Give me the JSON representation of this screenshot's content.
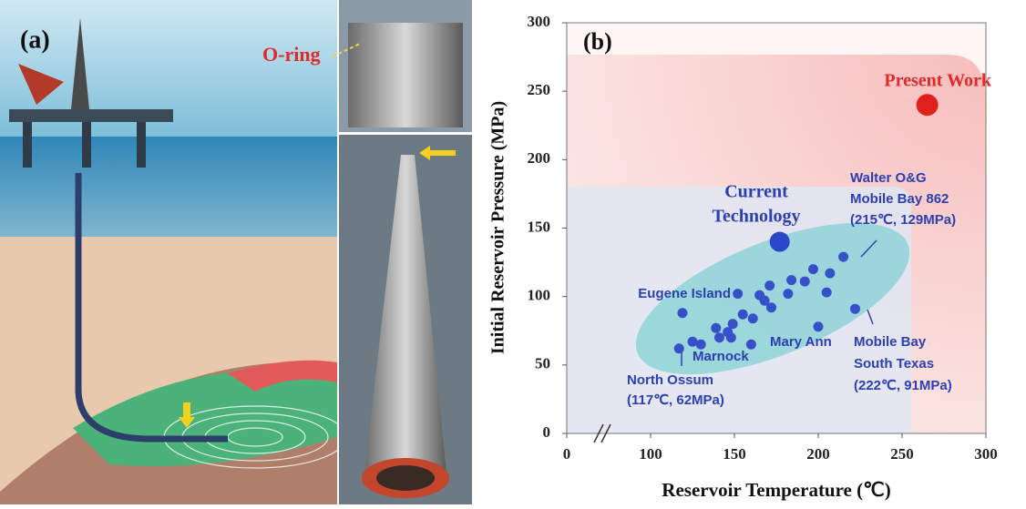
{
  "panel_a": {
    "label": "(a)",
    "callout": "O-ring"
  },
  "chart_data": {
    "type": "scatter",
    "panel_label": "(b)",
    "x_label": "Reservoir Temperature (℃)",
    "y_label": "Initial Reservoir Pressure (MPa)",
    "xlim": [
      0,
      300
    ],
    "xticks": [
      0,
      100,
      150,
      200,
      250,
      300
    ],
    "axis_break": true,
    "ylim": [
      0,
      300
    ],
    "yticks": [
      0,
      50,
      100,
      150,
      200,
      250,
      300
    ],
    "series": [
      {
        "color": "#e0201c",
        "x": [
          265
        ],
        "values": [
          240
        ]
      },
      {
        "color": "#2b46c8",
        "x": [
          177
        ],
        "values": [
          140
        ]
      },
      {
        "color": "#3550c8",
        "x": [
          215,
          222,
          117,
          119,
          152,
          165,
          171,
          168,
          172,
          184,
          182,
          192,
          197,
          207,
          205,
          200,
          155,
          161,
          149,
          146,
          139,
          141,
          148,
          160,
          125,
          130
        ],
        "values": [
          129,
          91,
          62,
          88,
          102,
          101,
          108,
          97,
          92,
          112,
          102,
          111,
          120,
          117,
          103,
          78,
          87,
          84,
          80,
          74,
          77,
          70,
          70,
          65,
          67,
          65
        ]
      }
    ],
    "annotations": [
      [
        "Present Work"
      ],
      [
        "Current",
        "Technology"
      ],
      [
        "Walter O&G",
        "Mobile Bay 862",
        "(215℃, 129MPa)"
      ],
      [
        "Eugene Island"
      ],
      [
        "Marnock"
      ],
      [
        "Mary Ann"
      ],
      [
        "North Ossum",
        "(117℃, 62MPa)"
      ],
      [
        "Mobile Bay",
        "South Texas",
        "(222℃, 91MPa)"
      ]
    ]
  }
}
